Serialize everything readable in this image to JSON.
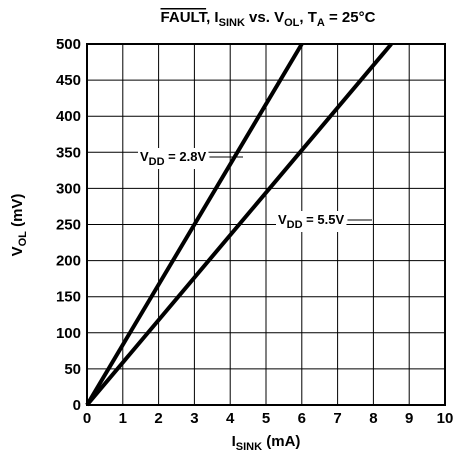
{
  "chart_data": {
    "type": "line",
    "title": [
      "FAULT",
      ", I",
      "SINK",
      " vs. V",
      "OL",
      ", T",
      "A",
      "  = 25°C"
    ],
    "x_label": [
      "I",
      "SINK",
      " (mA)"
    ],
    "y_label": [
      "V",
      "OL",
      " (mV)"
    ],
    "annotations": [
      [
        "V",
        "DD",
        " = 2.8V"
      ],
      [
        "V",
        "DD",
        " = 5.5V"
      ]
    ],
    "series": [
      {
        "name": "VDD = 2.8V",
        "color": "#000000",
        "x": [
          0,
          6
        ],
        "values": [
          0,
          500
        ]
      },
      {
        "name": "VDD = 5.5V",
        "color": "#000000",
        "x": [
          0,
          8.5
        ],
        "values": [
          0,
          500
        ]
      }
    ],
    "xlim": [
      0,
      10
    ],
    "xticks": [
      0,
      1,
      2,
      3,
      4,
      5,
      6,
      7,
      8,
      9,
      10
    ],
    "ylim": [
      0,
      500
    ],
    "yticks": [
      0,
      50,
      100,
      150,
      200,
      250,
      300,
      350,
      400,
      450,
      500
    ],
    "grid": true
  }
}
